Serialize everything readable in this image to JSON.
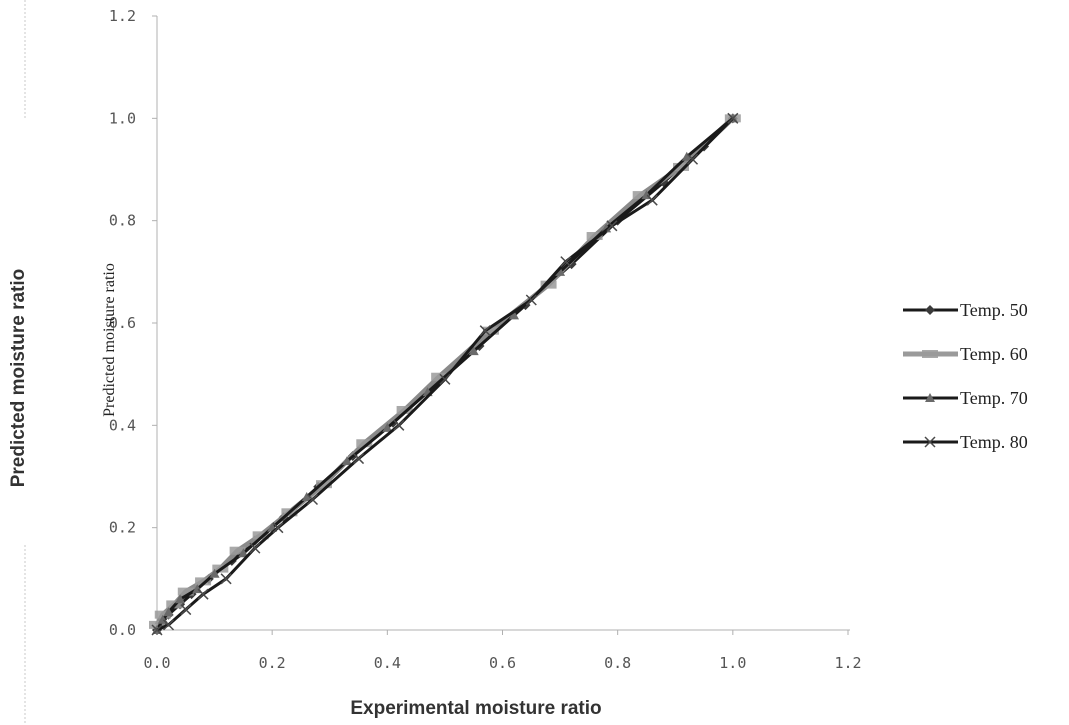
{
  "chart_data": {
    "type": "scatter",
    "title": "",
    "xlabel": "Experimental moisture ratio",
    "ylabel": "Predicted moisture ratio",
    "inner_ylabel": "Predicted moisture ratio",
    "xlim": [
      0.0,
      1.2
    ],
    "ylim": [
      0.0,
      1.2
    ],
    "x_ticks": [
      "0.0",
      "0.2",
      "0.4",
      "0.6",
      "0.8",
      "1.0",
      "1.2"
    ],
    "y_ticks": [
      "0.0",
      "0.2",
      "0.4",
      "0.6",
      "0.8",
      "1.0",
      "1.2"
    ],
    "grid": false,
    "legend_position": "right",
    "series": [
      {
        "name": "Temp. 50",
        "marker": "diamond",
        "color": "#3a3a3a",
        "x": [
          0.0,
          0.01,
          0.02,
          0.04,
          0.06,
          0.09,
          0.13,
          0.17,
          0.22,
          0.28,
          0.34,
          0.41,
          0.48,
          0.56,
          0.64,
          0.72,
          0.8,
          0.88,
          0.95,
          1.0
        ],
        "y": [
          0.0,
          0.015,
          0.03,
          0.05,
          0.07,
          0.1,
          0.135,
          0.175,
          0.22,
          0.28,
          0.34,
          0.405,
          0.475,
          0.555,
          0.635,
          0.715,
          0.8,
          0.875,
          0.945,
          1.0
        ]
      },
      {
        "name": "Temp. 60",
        "marker": "square",
        "color": "#9a9a9a",
        "x": [
          0.0,
          0.01,
          0.03,
          0.05,
          0.08,
          0.11,
          0.14,
          0.18,
          0.23,
          0.29,
          0.36,
          0.43,
          0.49,
          0.58,
          0.68,
          0.76,
          0.84,
          0.91,
          1.0
        ],
        "y": [
          0.01,
          0.03,
          0.05,
          0.075,
          0.095,
          0.12,
          0.155,
          0.185,
          0.23,
          0.285,
          0.365,
          0.43,
          0.495,
          0.585,
          0.675,
          0.77,
          0.85,
          0.905,
          1.0
        ]
      },
      {
        "name": "Temp. 70",
        "marker": "triangle",
        "color": "#6a6a6a",
        "x": [
          0.0,
          0.01,
          0.02,
          0.04,
          0.07,
          0.1,
          0.15,
          0.2,
          0.26,
          0.33,
          0.4,
          0.47,
          0.55,
          0.62,
          0.7,
          0.78,
          0.85,
          0.92,
          1.0
        ],
        "y": [
          0.0,
          0.02,
          0.035,
          0.06,
          0.08,
          0.11,
          0.15,
          0.2,
          0.26,
          0.33,
          0.395,
          0.465,
          0.545,
          0.615,
          0.7,
          0.785,
          0.85,
          0.925,
          1.0
        ]
      },
      {
        "name": "Temp. 80",
        "marker": "x",
        "color": "#4a4a4a",
        "x": [
          0.0,
          0.02,
          0.05,
          0.08,
          0.12,
          0.17,
          0.21,
          0.27,
          0.35,
          0.42,
          0.5,
          0.57,
          0.65,
          0.71,
          0.79,
          0.86,
          0.93,
          1.0
        ],
        "y": [
          0.0,
          0.01,
          0.04,
          0.07,
          0.1,
          0.16,
          0.2,
          0.255,
          0.335,
          0.4,
          0.49,
          0.585,
          0.645,
          0.72,
          0.79,
          0.84,
          0.92,
          1.0
        ]
      }
    ]
  }
}
